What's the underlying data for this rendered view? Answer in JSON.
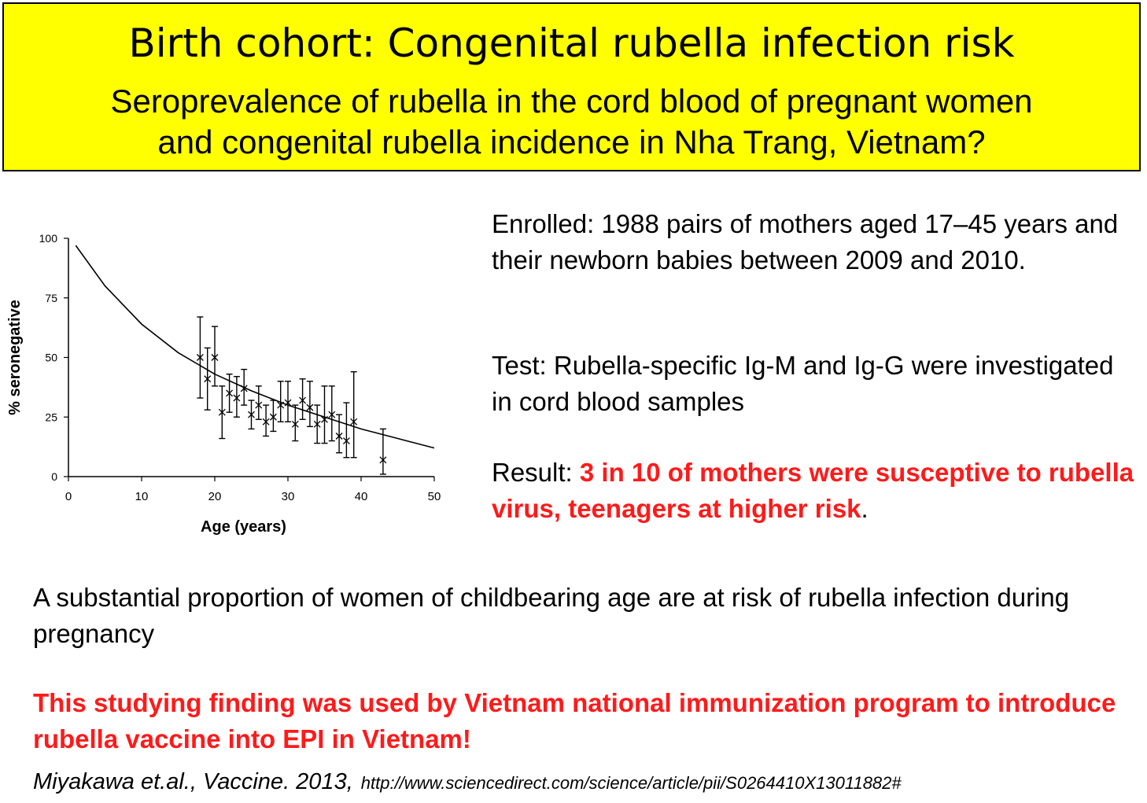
{
  "header": {
    "title": "Birth cohort: Congenital rubella infection risk",
    "subtitle_line1": "Seroprevalence of rubella in the cord blood of pregnant women",
    "subtitle_line2": "and congenital rubella incidence in Nha Trang, Vietnam?"
  },
  "text": {
    "enrolled": "Enrolled: 1988 pairs of mothers aged 17–45 years and their newborn babies between 2009 and 2010.",
    "test": "Test: Rubella-specific Ig-M and Ig-G were investigated in cord blood samples",
    "result_prefix": "Result: ",
    "result_highlight": "3 in 10 of mothers were susceptive to rubella virus, teenagers at higher risk",
    "result_suffix": ".",
    "conclusion": "A substantial proportion of women of childbearing age are at risk of rubella infection during pregnancy",
    "program_note": "This studying finding was used by Vietnam national immunization program to introduce rubella vaccine into EPI in Vietnam!",
    "citation": "Miyakawa et.al., Vaccine. 2013,",
    "url": "http://www.sciencedirect.com/science/article/pii/S0264410X13011882#"
  },
  "colors": {
    "header_bg": "#ffff00",
    "highlight": "#ff1a1a"
  },
  "chart_data": {
    "type": "scatter",
    "xlabel": "Age (years)",
    "ylabel": "% seronegative",
    "xlim": [
      0,
      50
    ],
    "ylim": [
      0,
      100
    ],
    "x_ticks": [
      0,
      10,
      20,
      30,
      40,
      50
    ],
    "y_ticks": [
      0,
      25,
      50,
      75,
      100
    ],
    "grid": false,
    "fitted_curve": {
      "x": [
        1,
        5,
        10,
        15,
        20,
        25,
        30,
        35,
        40,
        45,
        50
      ],
      "y": [
        97,
        80,
        64,
        52,
        43,
        36,
        30,
        25,
        20,
        16,
        12
      ]
    },
    "points": [
      {
        "x": 18,
        "y": 50,
        "low": 33,
        "high": 67
      },
      {
        "x": 19,
        "y": 41,
        "low": 28,
        "high": 54
      },
      {
        "x": 20,
        "y": 50,
        "low": 38,
        "high": 63
      },
      {
        "x": 21,
        "y": 27,
        "low": 16,
        "high": 38
      },
      {
        "x": 22,
        "y": 35,
        "low": 27,
        "high": 43
      },
      {
        "x": 23,
        "y": 33,
        "low": 25,
        "high": 42
      },
      {
        "x": 24,
        "y": 37,
        "low": 30,
        "high": 45
      },
      {
        "x": 25,
        "y": 26,
        "low": 20,
        "high": 32
      },
      {
        "x": 26,
        "y": 30,
        "low": 24,
        "high": 38
      },
      {
        "x": 27,
        "y": 23,
        "low": 17,
        "high": 30
      },
      {
        "x": 28,
        "y": 25,
        "low": 19,
        "high": 32
      },
      {
        "x": 29,
        "y": 30,
        "low": 23,
        "high": 40
      },
      {
        "x": 30,
        "y": 31,
        "low": 23,
        "high": 40
      },
      {
        "x": 31,
        "y": 22,
        "low": 15,
        "high": 30
      },
      {
        "x": 32,
        "y": 32,
        "low": 24,
        "high": 41
      },
      {
        "x": 33,
        "y": 29,
        "low": 21,
        "high": 40
      },
      {
        "x": 34,
        "y": 22,
        "low": 14,
        "high": 30
      },
      {
        "x": 35,
        "y": 24,
        "low": 14,
        "high": 38
      },
      {
        "x": 36,
        "y": 26,
        "low": 15,
        "high": 38
      },
      {
        "x": 37,
        "y": 17,
        "low": 10,
        "high": 26
      },
      {
        "x": 38,
        "y": 15,
        "low": 8,
        "high": 31
      },
      {
        "x": 39,
        "y": 23,
        "low": 8,
        "high": 44
      },
      {
        "x": 43,
        "y": 7,
        "low": 1,
        "high": 20
      }
    ]
  }
}
